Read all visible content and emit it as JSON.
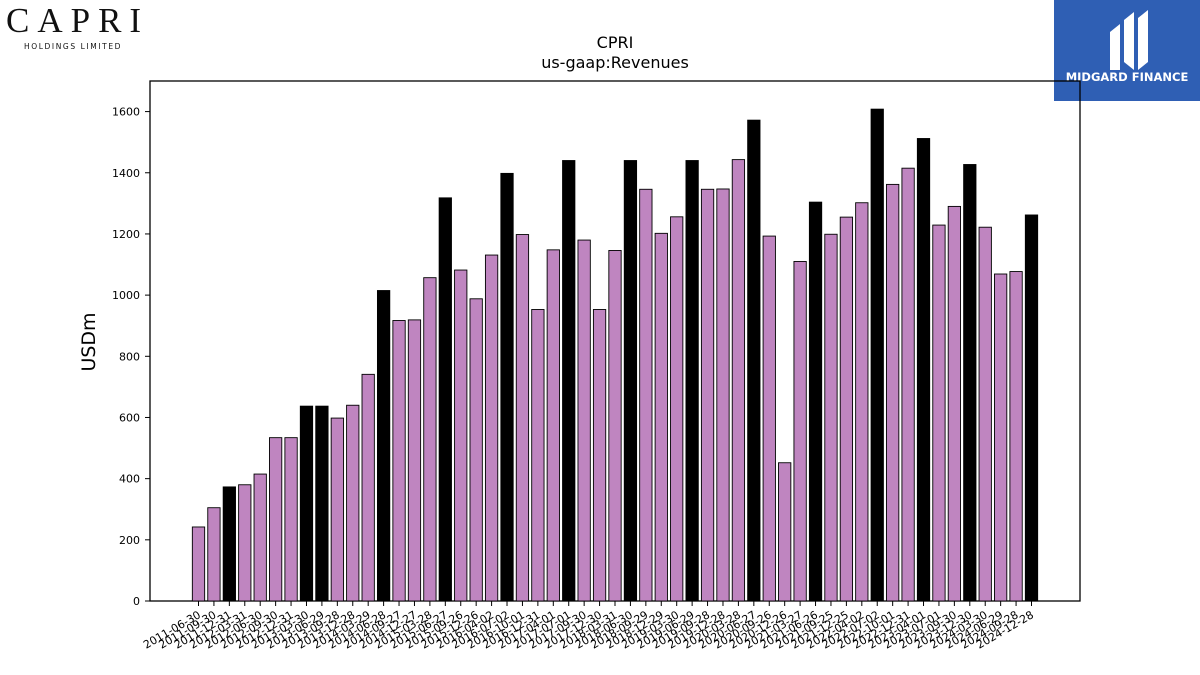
{
  "header": {
    "company_wordmark": "CAPRI",
    "company_subtitle": "HOLDINGS LIMITED",
    "publisher_name": "MIDGARD FINANCE"
  },
  "colors": {
    "quarter_bar": "#bf85c0",
    "annual_bar": "#000000",
    "bar_edge": "#000000",
    "publisher_bg": "#2f5fb4"
  },
  "chart_data": {
    "type": "bar",
    "title": "CPRI",
    "subtitle": "us-gaap:Revenues",
    "xlabel": "",
    "ylabel": "USDm",
    "ylim": [
      0,
      1700
    ],
    "yticks": [
      0,
      200,
      400,
      600,
      800,
      1000,
      1200,
      1400,
      1600
    ],
    "grid": false,
    "legend": "none",
    "categories": [
      "2011-06-30",
      "2011-09-30",
      "2011-12-31",
      "2012-03-31",
      "2012-06-30",
      "2012-09-30",
      "2012-12-31",
      "2013-03-30",
      "2013-06-29",
      "2013-09-28",
      "2013-12-28",
      "2014-03-29",
      "2014-06-28",
      "2014-09-27",
      "2014-12-27",
      "2015-03-28",
      "2015-06-27",
      "2015-09-26",
      "2015-12-26",
      "2016-04-02",
      "2016-07-02",
      "2016-10-01",
      "2016-12-31",
      "2017-04-01",
      "2017-07-01",
      "2017-09-30",
      "2017-12-30",
      "2018-03-31",
      "2018-06-30",
      "2018-09-29",
      "2018-12-29",
      "2019-03-30",
      "2019-06-29",
      "2019-09-28",
      "2019-12-28",
      "2020-03-28",
      "2020-06-27",
      "2020-09-26",
      "2020-12-26",
      "2021-03-27",
      "2021-06-26",
      "2021-09-25",
      "2021-12-25",
      "2022-04-02",
      "2022-07-02",
      "2022-10-01",
      "2022-12-31",
      "2023-04-01",
      "2023-07-01",
      "2023-09-30",
      "2023-12-30",
      "2024-03-30",
      "2024-06-29",
      "2024-09-28",
      "2024-12-28"
    ],
    "xtick_labels": [
      "2011-06-30",
      "2011-09-30",
      "2011-12-31",
      "2012-03-31",
      "2012-06-30",
      "2012-09-30",
      "2012-12-31",
      "2013-03-30",
      "2013-06-29",
      "2013-09-28",
      "2013-12-28",
      "2014-03-29",
      "2014-06-28",
      "2014-09-27",
      "2014-12-27",
      "2015-03-28",
      "2015-06-27",
      "2015-09-26",
      "2015-12-26",
      "2016-04-02",
      "2016-07-02",
      "2016-10-01",
      "2016-12-31",
      "2017-04-01",
      "2017-07-01",
      "2017-09-30",
      "2017-12-30",
      "2018-03-31",
      "2018-06-30",
      "2018-09-29",
      "2018-12-29",
      "2019-03-30",
      "2019-06-29",
      "2019-09-28",
      "2019-12-28",
      "2020-03-28",
      "2020-06-27",
      "2020-09-26",
      "2020-12-26",
      "2021-03-27",
      "2021-06-26",
      "2021-09-25",
      "2021-12-25",
      "2022-04-02",
      "2022-07-02",
      "2022-10-01",
      "2022-12-31",
      "2023-04-01",
      "2023-07-01",
      "2023-09-30",
      "2023-12-30",
      "2024-03-30",
      "2024-06-29",
      "2024-09-28",
      "2024-12-28"
    ],
    "values": [
      242,
      305,
      373,
      380,
      415,
      534,
      534,
      637,
      637,
      598,
      640,
      741,
      1015,
      917,
      919,
      1057,
      1318,
      1082,
      988,
      1131,
      1398,
      1198,
      953,
      1148,
      1440,
      1180,
      953,
      1146,
      1440,
      1346,
      1202,
      1256,
      1440,
      1346,
      1347,
      1443,
      1572,
      1193,
      452,
      1110,
      1304,
      1199,
      1255,
      1302,
      1608,
      1362,
      1415,
      1512,
      1229,
      1290,
      1427,
      1222,
      1069,
      1077,
      1262
    ],
    "bar_kind": [
      "q",
      "q",
      "a",
      "q",
      "q",
      "q",
      "q",
      "a",
      "a",
      "q",
      "q",
      "q",
      "a",
      "q",
      "q",
      "q",
      "a",
      "q",
      "q",
      "q",
      "a",
      "q",
      "q",
      "q",
      "a",
      "q",
      "q",
      "q",
      "a",
      "q",
      "q",
      "q",
      "a",
      "q",
      "q",
      "q",
      "a",
      "q",
      "q",
      "q",
      "a",
      "q",
      "q",
      "q",
      "a",
      "q",
      "q",
      "a",
      "q",
      "q",
      "a",
      "q",
      "q",
      "q",
      "a"
    ]
  }
}
